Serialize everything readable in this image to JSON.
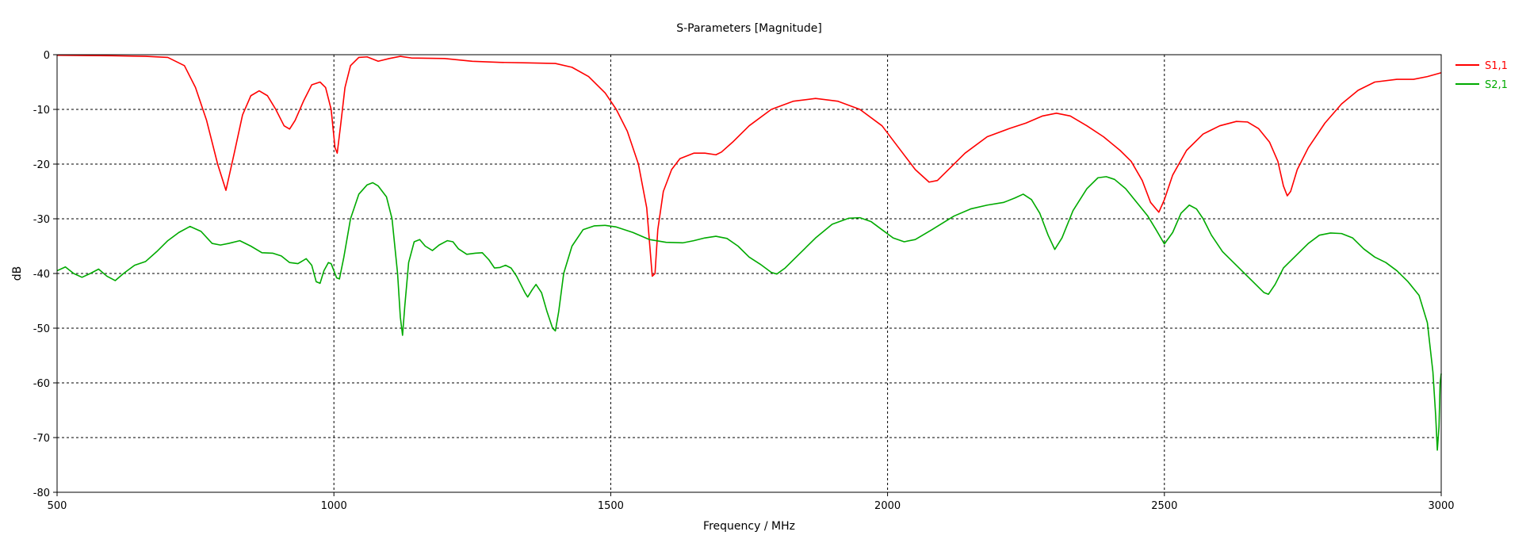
{
  "chart_data": {
    "type": "line",
    "title": "S-Parameters [Magnitude]",
    "xlabel": "Frequency / MHz",
    "ylabel": "dB",
    "xlim": [
      500,
      3000
    ],
    "ylim": [
      -80,
      0
    ],
    "x_ticks": [
      500,
      1000,
      1500,
      2000,
      2500,
      3000
    ],
    "y_ticks": [
      0,
      -10,
      -20,
      -30,
      -40,
      -50,
      -60,
      -70,
      -80
    ],
    "grid": true,
    "legend_position": "top-right",
    "series": [
      {
        "name": "S1,1",
        "color": "#ff0000",
        "points": [
          [
            500,
            -0.1
          ],
          [
            600,
            -0.2
          ],
          [
            660,
            -0.3
          ],
          [
            700,
            -0.5
          ],
          [
            730,
            -2
          ],
          [
            750,
            -6
          ],
          [
            770,
            -12
          ],
          [
            790,
            -20
          ],
          [
            805,
            -24.8
          ],
          [
            820,
            -18
          ],
          [
            835,
            -11
          ],
          [
            850,
            -7.5
          ],
          [
            865,
            -6.6
          ],
          [
            880,
            -7.5
          ],
          [
            895,
            -10
          ],
          [
            910,
            -13
          ],
          [
            920,
            -13.6
          ],
          [
            930,
            -12
          ],
          [
            945,
            -8.5
          ],
          [
            960,
            -5.5
          ],
          [
            975,
            -5
          ],
          [
            985,
            -6
          ],
          [
            995,
            -10
          ],
          [
            1002,
            -17
          ],
          [
            1006,
            -18
          ],
          [
            1012,
            -13
          ],
          [
            1020,
            -6
          ],
          [
            1030,
            -2
          ],
          [
            1045,
            -0.5
          ],
          [
            1060,
            -0.4
          ],
          [
            1080,
            -1.2
          ],
          [
            1100,
            -0.7
          ],
          [
            1120,
            -0.3
          ],
          [
            1140,
            -0.6
          ],
          [
            1200,
            -0.7
          ],
          [
            1250,
            -1.2
          ],
          [
            1300,
            -1.4
          ],
          [
            1350,
            -1.5
          ],
          [
            1400,
            -1.6
          ],
          [
            1430,
            -2.3
          ],
          [
            1460,
            -4
          ],
          [
            1490,
            -7
          ],
          [
            1510,
            -10
          ],
          [
            1530,
            -14
          ],
          [
            1550,
            -20
          ],
          [
            1565,
            -28
          ],
          [
            1575,
            -40.5
          ],
          [
            1580,
            -40
          ],
          [
            1585,
            -32
          ],
          [
            1595,
            -25
          ],
          [
            1610,
            -21
          ],
          [
            1625,
            -19
          ],
          [
            1650,
            -18
          ],
          [
            1670,
            -18
          ],
          [
            1690,
            -18.3
          ],
          [
            1700,
            -17.8
          ],
          [
            1720,
            -16
          ],
          [
            1750,
            -13
          ],
          [
            1790,
            -10
          ],
          [
            1830,
            -8.5
          ],
          [
            1870,
            -8
          ],
          [
            1910,
            -8.5
          ],
          [
            1950,
            -10
          ],
          [
            1990,
            -13
          ],
          [
            2020,
            -17
          ],
          [
            2050,
            -21
          ],
          [
            2075,
            -23.3
          ],
          [
            2090,
            -23
          ],
          [
            2110,
            -21
          ],
          [
            2140,
            -18
          ],
          [
            2180,
            -15
          ],
          [
            2220,
            -13.5
          ],
          [
            2250,
            -12.5
          ],
          [
            2280,
            -11.2
          ],
          [
            2305,
            -10.7
          ],
          [
            2330,
            -11.2
          ],
          [
            2360,
            -13
          ],
          [
            2390,
            -15
          ],
          [
            2420,
            -17.5
          ],
          [
            2440,
            -19.5
          ],
          [
            2460,
            -23
          ],
          [
            2475,
            -27
          ],
          [
            2490,
            -28.8
          ],
          [
            2500,
            -26.5
          ],
          [
            2515,
            -22
          ],
          [
            2540,
            -17.5
          ],
          [
            2570,
            -14.5
          ],
          [
            2600,
            -13
          ],
          [
            2630,
            -12.2
          ],
          [
            2650,
            -12.3
          ],
          [
            2670,
            -13.5
          ],
          [
            2690,
            -16
          ],
          [
            2705,
            -19.5
          ],
          [
            2715,
            -24
          ],
          [
            2722,
            -25.8
          ],
          [
            2728,
            -25
          ],
          [
            2740,
            -21
          ],
          [
            2760,
            -17
          ],
          [
            2790,
            -12.5
          ],
          [
            2820,
            -9
          ],
          [
            2850,
            -6.5
          ],
          [
            2880,
            -5
          ],
          [
            2920,
            -4.5
          ],
          [
            2950,
            -4.5
          ],
          [
            2975,
            -4
          ],
          [
            3000,
            -3.3
          ]
        ]
      },
      {
        "name": "S2,1",
        "color": "#00aa00",
        "points": [
          [
            500,
            -39.5
          ],
          [
            515,
            -38.8
          ],
          [
            530,
            -40
          ],
          [
            545,
            -40.7
          ],
          [
            560,
            -40
          ],
          [
            575,
            -39.2
          ],
          [
            590,
            -40.5
          ],
          [
            605,
            -41.3
          ],
          [
            620,
            -40
          ],
          [
            640,
            -38.5
          ],
          [
            660,
            -37.8
          ],
          [
            680,
            -36
          ],
          [
            700,
            -34
          ],
          [
            720,
            -32.5
          ],
          [
            740,
            -31.4
          ],
          [
            760,
            -32.3
          ],
          [
            780,
            -34.5
          ],
          [
            795,
            -34.8
          ],
          [
            810,
            -34.5
          ],
          [
            830,
            -34
          ],
          [
            850,
            -35
          ],
          [
            870,
            -36.2
          ],
          [
            890,
            -36.3
          ],
          [
            905,
            -36.8
          ],
          [
            920,
            -38
          ],
          [
            935,
            -38.2
          ],
          [
            950,
            -37.3
          ],
          [
            960,
            -38.5
          ],
          [
            968,
            -41.5
          ],
          [
            975,
            -41.8
          ],
          [
            982,
            -39.5
          ],
          [
            990,
            -38
          ],
          [
            995,
            -38.2
          ],
          [
            1000,
            -39.5
          ],
          [
            1005,
            -40.8
          ],
          [
            1010,
            -41
          ],
          [
            1018,
            -37
          ],
          [
            1030,
            -30
          ],
          [
            1045,
            -25.5
          ],
          [
            1060,
            -23.8
          ],
          [
            1070,
            -23.4
          ],
          [
            1080,
            -24
          ],
          [
            1095,
            -26
          ],
          [
            1105,
            -30
          ],
          [
            1115,
            -40
          ],
          [
            1120,
            -48
          ],
          [
            1124,
            -51.3
          ],
          [
            1128,
            -46
          ],
          [
            1135,
            -38
          ],
          [
            1145,
            -34.2
          ],
          [
            1155,
            -33.8
          ],
          [
            1165,
            -35
          ],
          [
            1178,
            -35.8
          ],
          [
            1190,
            -34.8
          ],
          [
            1205,
            -34
          ],
          [
            1215,
            -34.2
          ],
          [
            1225,
            -35.5
          ],
          [
            1240,
            -36.5
          ],
          [
            1255,
            -36.3
          ],
          [
            1268,
            -36.2
          ],
          [
            1280,
            -37.5
          ],
          [
            1290,
            -39
          ],
          [
            1300,
            -38.9
          ],
          [
            1310,
            -38.5
          ],
          [
            1320,
            -39
          ],
          [
            1330,
            -40.5
          ],
          [
            1345,
            -43.5
          ],
          [
            1350,
            -44.3
          ],
          [
            1358,
            -43
          ],
          [
            1365,
            -42
          ],
          [
            1375,
            -43.5
          ],
          [
            1385,
            -47
          ],
          [
            1395,
            -50
          ],
          [
            1400,
            -50.5
          ],
          [
            1406,
            -47
          ],
          [
            1415,
            -40
          ],
          [
            1430,
            -35
          ],
          [
            1450,
            -32
          ],
          [
            1470,
            -31.3
          ],
          [
            1490,
            -31.2
          ],
          [
            1510,
            -31.5
          ],
          [
            1540,
            -32.5
          ],
          [
            1570,
            -33.8
          ],
          [
            1600,
            -34.3
          ],
          [
            1630,
            -34.4
          ],
          [
            1650,
            -34
          ],
          [
            1670,
            -33.5
          ],
          [
            1690,
            -33.2
          ],
          [
            1710,
            -33.6
          ],
          [
            1730,
            -35
          ],
          [
            1750,
            -37
          ],
          [
            1770,
            -38.3
          ],
          [
            1790,
            -39.8
          ],
          [
            1800,
            -40.1
          ],
          [
            1815,
            -39
          ],
          [
            1840,
            -36.5
          ],
          [
            1870,
            -33.5
          ],
          [
            1900,
            -31
          ],
          [
            1930,
            -29.9
          ],
          [
            1950,
            -29.8
          ],
          [
            1970,
            -30.5
          ],
          [
            1990,
            -32
          ],
          [
            2010,
            -33.5
          ],
          [
            2030,
            -34.2
          ],
          [
            2050,
            -33.8
          ],
          [
            2080,
            -32
          ],
          [
            2120,
            -29.5
          ],
          [
            2150,
            -28.2
          ],
          [
            2180,
            -27.5
          ],
          [
            2210,
            -27
          ],
          [
            2230,
            -26.2
          ],
          [
            2245,
            -25.5
          ],
          [
            2260,
            -26.5
          ],
          [
            2275,
            -29
          ],
          [
            2290,
            -33
          ],
          [
            2302,
            -35.6
          ],
          [
            2315,
            -33.5
          ],
          [
            2335,
            -28.5
          ],
          [
            2360,
            -24.5
          ],
          [
            2380,
            -22.5
          ],
          [
            2395,
            -22.3
          ],
          [
            2410,
            -22.8
          ],
          [
            2430,
            -24.5
          ],
          [
            2450,
            -27
          ],
          [
            2470,
            -29.5
          ],
          [
            2485,
            -32
          ],
          [
            2500,
            -34.6
          ],
          [
            2515,
            -32.5
          ],
          [
            2530,
            -29
          ],
          [
            2545,
            -27.5
          ],
          [
            2558,
            -28.2
          ],
          [
            2570,
            -30
          ],
          [
            2585,
            -33
          ],
          [
            2605,
            -36
          ],
          [
            2630,
            -38.5
          ],
          [
            2655,
            -41
          ],
          [
            2680,
            -43.5
          ],
          [
            2688,
            -43.8
          ],
          [
            2700,
            -42
          ],
          [
            2715,
            -39
          ],
          [
            2740,
            -36.5
          ],
          [
            2760,
            -34.5
          ],
          [
            2780,
            -33
          ],
          [
            2800,
            -32.6
          ],
          [
            2820,
            -32.7
          ],
          [
            2840,
            -33.5
          ],
          [
            2860,
            -35.5
          ],
          [
            2880,
            -37
          ],
          [
            2900,
            -38
          ],
          [
            2920,
            -39.5
          ],
          [
            2940,
            -41.5
          ],
          [
            2960,
            -44
          ],
          [
            2975,
            -49
          ],
          [
            2985,
            -58
          ],
          [
            2990,
            -66
          ],
          [
            2993,
            -72.3
          ],
          [
            2996,
            -68
          ],
          [
            2998,
            -60
          ],
          [
            3000,
            -58.3
          ]
        ]
      }
    ]
  }
}
